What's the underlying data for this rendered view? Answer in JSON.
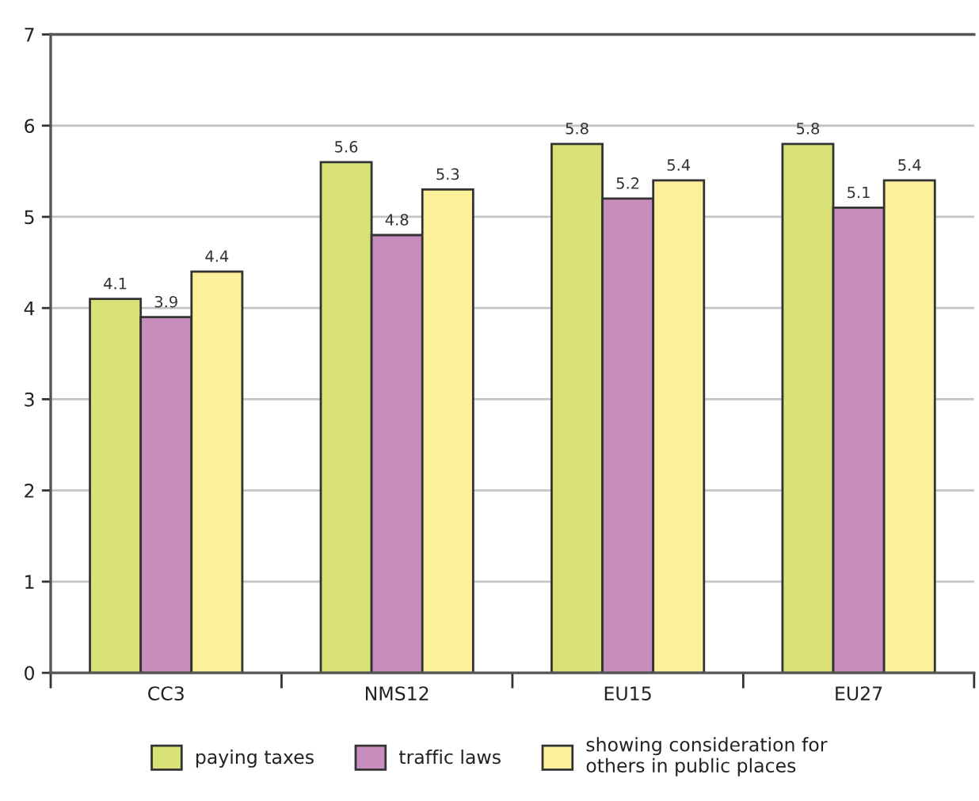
{
  "chart_data": {
    "type": "bar",
    "categories": [
      "CC3",
      "NMS12",
      "EU15",
      "EU27"
    ],
    "series": [
      {
        "name": "paying taxes",
        "color": "#d9e276",
        "values": [
          4.1,
          5.6,
          5.8,
          5.8
        ]
      },
      {
        "name": "traffic laws",
        "color": "#c98dbd",
        "values": [
          3.9,
          4.8,
          5.2,
          5.1
        ]
      },
      {
        "name": "showing consideration for\nothers in public places",
        "color": "#fdf09a",
        "values": [
          4.4,
          5.3,
          5.4,
          5.4
        ]
      }
    ],
    "ylim": [
      0,
      7
    ],
    "yticks": [
      0,
      1,
      2,
      3,
      4,
      5,
      6,
      7
    ],
    "grid": "y",
    "legend": "bottom",
    "data_labels": true
  }
}
